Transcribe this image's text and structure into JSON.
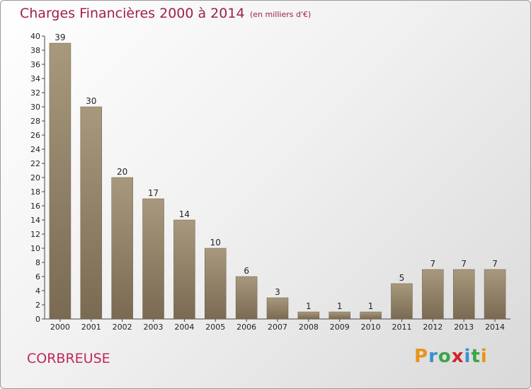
{
  "header": {
    "title": "Charges Financières 2000 à 2014",
    "subtitle": "(en milliers d'€)"
  },
  "footer": {
    "town": "CORBREUSE",
    "logo": {
      "letters": [
        "P",
        "r",
        "o",
        "x",
        "i",
        "t",
        "i"
      ],
      "colors": [
        "#e8931a",
        "#3a8fd0",
        "#3aa54a",
        "#d2232a",
        "#3a8fd0",
        "#3aa54a",
        "#e8931a"
      ]
    }
  },
  "chart_data": {
    "type": "bar",
    "categories": [
      "2000",
      "2001",
      "2002",
      "2003",
      "2004",
      "2005",
      "2006",
      "2007",
      "2008",
      "2009",
      "2010",
      "2011",
      "2012",
      "2013",
      "2014"
    ],
    "values": [
      39,
      30,
      20,
      17,
      14,
      10,
      6,
      3,
      1,
      1,
      1,
      5,
      7,
      7,
      7
    ],
    "ylim": [
      0,
      40
    ],
    "ytick_step": 2,
    "grid": false,
    "bar_color": "#8f7d63"
  }
}
